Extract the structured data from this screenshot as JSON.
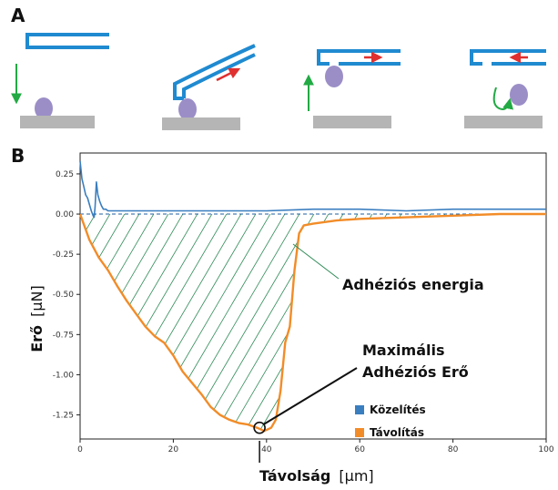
{
  "panel_a_label": "A",
  "panel_b_label": "B",
  "chart_data": {
    "type": "line",
    "title": "",
    "xlabel_main": "Távolság",
    "xlabel_unit": "[μm]",
    "ylabel_main": "Erő",
    "ylabel_unit": "[μN]",
    "xlim": [
      0,
      100
    ],
    "ylim": [
      -1.4,
      0.38
    ],
    "xticks": [
      0,
      20,
      40,
      60,
      80,
      100
    ],
    "xtick_labels": [
      "0",
      "20",
      "40",
      "60",
      "80",
      "100"
    ],
    "yticks": [
      0.25,
      0.0,
      -0.25,
      -0.5,
      -0.75,
      -1.0,
      -1.25
    ],
    "ytick_labels": [
      "0.25",
      "0.00",
      "-0.25",
      "-0.50",
      "-0.75",
      "-1.00",
      "-1.25"
    ],
    "grid": false,
    "legend_position": "bottom-right",
    "series": [
      {
        "name": "Közelítés",
        "color": "#3a7ebf",
        "x": [
          0,
          0.4,
          0.8,
          1.2,
          1.6,
          2.0,
          2.4,
          2.8,
          3.0,
          3.2,
          3.5,
          3.8,
          4.2,
          4.6,
          5.0,
          5.5,
          6.0,
          7.0,
          8.0,
          10,
          15,
          20,
          30,
          40,
          50,
          60,
          70,
          80,
          90,
          100
        ],
        "y": [
          0.33,
          0.22,
          0.17,
          0.12,
          0.1,
          0.06,
          0.02,
          -0.01,
          -0.02,
          0.04,
          0.2,
          0.12,
          0.08,
          0.05,
          0.03,
          0.03,
          0.02,
          0.02,
          0.02,
          0.02,
          0.02,
          0.02,
          0.02,
          0.02,
          0.03,
          0.03,
          0.02,
          0.03,
          0.03,
          0.03
        ]
      },
      {
        "name": "Távolítás",
        "color": "#f28c28",
        "x": [
          0,
          2,
          4,
          6,
          8,
          10,
          12,
          14,
          16,
          18,
          20,
          22,
          24,
          26,
          28,
          30,
          32,
          34,
          36,
          38,
          39.5,
          41,
          42,
          43,
          44,
          45,
          46,
          47,
          48,
          50,
          55,
          60,
          70,
          80,
          90,
          100
        ],
        "y": [
          0.0,
          -0.16,
          -0.27,
          -0.35,
          -0.45,
          -0.54,
          -0.62,
          -0.7,
          -0.76,
          -0.8,
          -0.88,
          -0.98,
          -1.05,
          -1.12,
          -1.2,
          -1.25,
          -1.28,
          -1.3,
          -1.31,
          -1.33,
          -1.35,
          -1.33,
          -1.28,
          -1.1,
          -0.8,
          -0.7,
          -0.35,
          -0.12,
          -0.07,
          -0.06,
          -0.04,
          -0.03,
          -0.02,
          -0.01,
          0.0,
          0.0
        ]
      }
    ],
    "annotations": {
      "energy_label": "Adhéziós energia",
      "max_force_line1": "Maximális",
      "max_force_line2": "Adhéziós Erő",
      "max_point": {
        "x": 38.5,
        "y": -1.33
      }
    },
    "hatch_color": "#2e8b57"
  },
  "schematic": {
    "cantilever_color": "#1f8ad0",
    "cell_color": "#9b8ec7",
    "substrate_color": "#b5b5b5",
    "arrow_green": "#22aa44",
    "arrow_red": "#e03030"
  }
}
